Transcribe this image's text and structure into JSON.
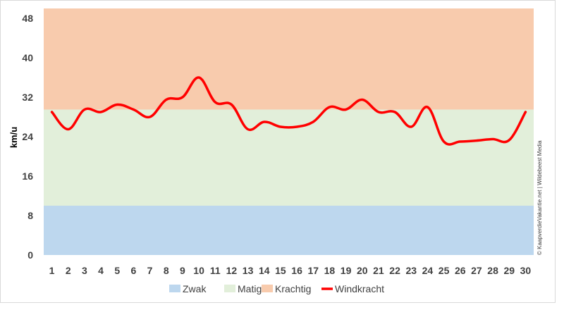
{
  "chart_data": {
    "type": "line",
    "ylabel": "km/u",
    "ylim": [
      0,
      48
    ],
    "yticks": [
      0,
      8,
      16,
      24,
      32,
      40,
      48
    ],
    "categories": [
      "1",
      "2",
      "3",
      "4",
      "5",
      "6",
      "7",
      "8",
      "9",
      "10",
      "11",
      "12",
      "13",
      "14",
      "15",
      "16",
      "17",
      "18",
      "19",
      "20",
      "21",
      "22",
      "23",
      "24",
      "25",
      "26",
      "27",
      "28",
      "29",
      "30"
    ],
    "bands": [
      {
        "name": "Zwak",
        "from": 0,
        "to": 10,
        "color": "#bdd7ee"
      },
      {
        "name": "Matig",
        "from": 10,
        "to": 29.5,
        "color": "#e2efda"
      },
      {
        "name": "Krachtig",
        "from": 29.5,
        "to": 50,
        "color": "#f8cbad"
      }
    ],
    "series": [
      {
        "name": "Windkracht",
        "color": "#ff0000",
        "values": [
          29,
          25.5,
          29.5,
          29,
          30.5,
          29.5,
          28,
          31.5,
          32,
          36,
          31,
          30.5,
          25.5,
          27,
          26,
          26,
          27,
          30,
          29.5,
          31.5,
          29,
          29,
          26,
          30,
          23,
          23,
          23.2,
          23.5,
          23.3,
          29
        ]
      }
    ],
    "legend": {
      "placement": "bottom",
      "items": [
        {
          "label": "Zwak",
          "kind": "box",
          "color": "#bdd7ee"
        },
        {
          "label": "Matig",
          "kind": "box",
          "color": "#e2efda"
        },
        {
          "label": "Krachtig",
          "kind": "box",
          "color": "#f8cbad"
        },
        {
          "label": "Windkracht",
          "kind": "line",
          "color": "#ff0000"
        }
      ]
    },
    "credit": "© KaapverdieVakantie.net | Wildebeest Media",
    "grid": false
  }
}
